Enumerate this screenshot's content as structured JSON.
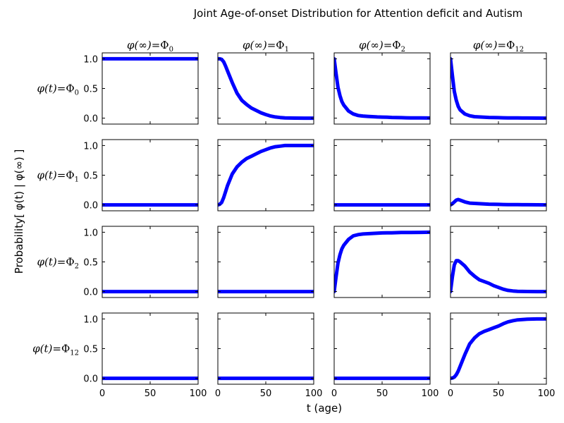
{
  "chart_data": {
    "type": "line",
    "title": "Joint Age-of-onset Distribution for Attention deficit and Autism",
    "xlabel": "t (age)",
    "ylabel": "Probability[ φ(t) | φ(∞) ]",
    "xlim": [
      0,
      100
    ],
    "ylim": [
      -0.1,
      1.1
    ],
    "xticks": [
      "0",
      "50",
      "100"
    ],
    "yticks": [
      "0.0",
      "0.5",
      "1.0"
    ],
    "grid": false,
    "line_color": "#0000ff",
    "col_headers": [
      {
        "lhs": "φ(∞)=",
        "base": "Φ",
        "sub": "0"
      },
      {
        "lhs": "φ(∞)=",
        "base": "Φ",
        "sub": "1"
      },
      {
        "lhs": "φ(∞)=",
        "base": "Φ",
        "sub": "2"
      },
      {
        "lhs": "φ(∞)=",
        "base": "Φ",
        "sub": "12"
      }
    ],
    "row_headers": [
      {
        "lhs": "φ(t)=",
        "base": "Φ",
        "sub": "0"
      },
      {
        "lhs": "φ(t)=",
        "base": "Φ",
        "sub": "1"
      },
      {
        "lhs": "φ(t)=",
        "base": "Φ",
        "sub": "2"
      },
      {
        "lhs": "φ(t)=",
        "base": "Φ",
        "sub": "12"
      }
    ],
    "x": [
      0,
      2,
      4,
      6,
      8,
      10,
      15,
      20,
      25,
      30,
      35,
      40,
      45,
      50,
      55,
      60,
      65,
      70,
      75,
      80,
      90,
      100
    ],
    "panels": [
      [
        [
          1,
          1,
          1,
          1,
          1,
          1,
          1,
          1,
          1,
          1,
          1,
          1,
          1,
          1,
          1,
          1,
          1,
          1,
          1,
          1,
          1,
          1
        ],
        [
          1,
          1,
          0.99,
          0.95,
          0.88,
          0.8,
          0.6,
          0.42,
          0.3,
          0.23,
          0.17,
          0.13,
          0.09,
          0.06,
          0.035,
          0.02,
          0.01,
          0.005,
          0.002,
          0.001,
          0,
          0
        ],
        [
          1,
          0.75,
          0.52,
          0.38,
          0.28,
          0.22,
          0.12,
          0.07,
          0.045,
          0.035,
          0.03,
          0.025,
          0.02,
          0.018,
          0.015,
          0.012,
          0.01,
          0.008,
          0.006,
          0.005,
          0.003,
          0.002
        ],
        [
          1,
          0.72,
          0.45,
          0.3,
          0.2,
          0.14,
          0.07,
          0.04,
          0.025,
          0.02,
          0.015,
          0.012,
          0.01,
          0.008,
          0.006,
          0.005,
          0.004,
          0.003,
          0.002,
          0.002,
          0.001,
          0
        ]
      ],
      [
        [
          0,
          0,
          0,
          0,
          0,
          0,
          0,
          0,
          0,
          0,
          0,
          0,
          0,
          0,
          0,
          0,
          0,
          0,
          0,
          0,
          0,
          0
        ],
        [
          0,
          0.01,
          0.04,
          0.12,
          0.22,
          0.32,
          0.52,
          0.64,
          0.72,
          0.78,
          0.82,
          0.86,
          0.9,
          0.93,
          0.96,
          0.98,
          0.99,
          1,
          1,
          1,
          1,
          1
        ],
        [
          0,
          0,
          0,
          0,
          0,
          0,
          0,
          0,
          0,
          0,
          0,
          0,
          0,
          0,
          0,
          0,
          0,
          0,
          0,
          0,
          0,
          0
        ],
        [
          0,
          0.02,
          0.05,
          0.08,
          0.09,
          0.08,
          0.05,
          0.03,
          0.025,
          0.02,
          0.015,
          0.012,
          0.01,
          0.008,
          0.006,
          0.005,
          0.004,
          0.003,
          0.002,
          0.002,
          0.001,
          0
        ]
      ],
      [
        [
          0,
          0,
          0,
          0,
          0,
          0,
          0,
          0,
          0,
          0,
          0,
          0,
          0,
          0,
          0,
          0,
          0,
          0,
          0,
          0,
          0,
          0
        ],
        [
          0,
          0,
          0,
          0,
          0,
          0,
          0,
          0,
          0,
          0,
          0,
          0,
          0,
          0,
          0,
          0,
          0,
          0,
          0,
          0,
          0,
          0
        ],
        [
          0,
          0.25,
          0.48,
          0.62,
          0.72,
          0.78,
          0.88,
          0.94,
          0.96,
          0.97,
          0.975,
          0.98,
          0.985,
          0.988,
          0.99,
          0.99,
          0.993,
          0.995,
          0.996,
          0.997,
          0.998,
          1
        ],
        [
          0,
          0.25,
          0.45,
          0.52,
          0.52,
          0.5,
          0.43,
          0.33,
          0.26,
          0.2,
          0.17,
          0.14,
          0.1,
          0.07,
          0.04,
          0.02,
          0.01,
          0.005,
          0.002,
          0.001,
          0,
          0
        ]
      ],
      [
        [
          0,
          0,
          0,
          0,
          0,
          0,
          0,
          0,
          0,
          0,
          0,
          0,
          0,
          0,
          0,
          0,
          0,
          0,
          0,
          0,
          0,
          0
        ],
        [
          0,
          0,
          0,
          0,
          0,
          0,
          0,
          0,
          0,
          0,
          0,
          0,
          0,
          0,
          0,
          0,
          0,
          0,
          0,
          0,
          0,
          0
        ],
        [
          0,
          0,
          0,
          0,
          0,
          0,
          0,
          0,
          0,
          0,
          0,
          0,
          0,
          0,
          0,
          0,
          0,
          0,
          0,
          0,
          0,
          0
        ],
        [
          0,
          0.005,
          0.02,
          0.06,
          0.12,
          0.2,
          0.4,
          0.58,
          0.68,
          0.75,
          0.79,
          0.82,
          0.85,
          0.88,
          0.92,
          0.95,
          0.97,
          0.985,
          0.99,
          0.995,
          1,
          1
        ]
      ]
    ]
  }
}
